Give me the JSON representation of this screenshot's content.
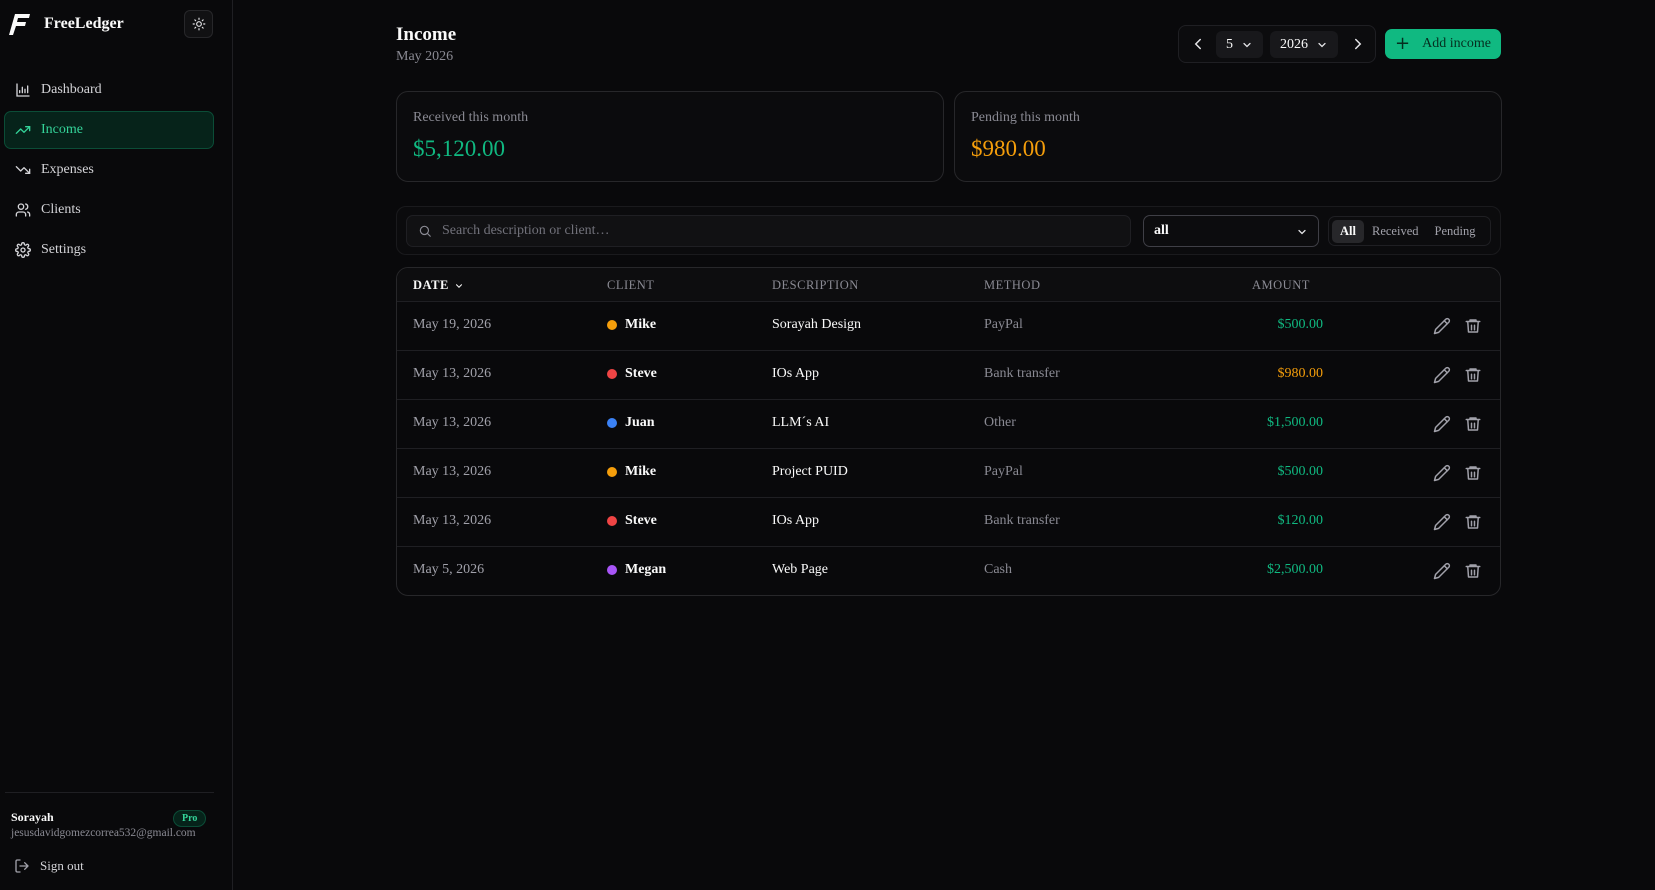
{
  "app": {
    "name": "FreeLedger"
  },
  "sidebar": {
    "items": [
      {
        "label": "Dashboard",
        "icon": "chart-icon",
        "active": false
      },
      {
        "label": "Income",
        "icon": "trending-up-icon",
        "active": true
      },
      {
        "label": "Expenses",
        "icon": "trending-down-icon",
        "active": false
      },
      {
        "label": "Clients",
        "icon": "users-icon",
        "active": false
      },
      {
        "label": "Settings",
        "icon": "gear-icon",
        "active": false
      }
    ],
    "user": {
      "name": "Sorayah",
      "email": "jesusdavidgomezcorrea532@gmail.com",
      "plan": "Pro"
    },
    "signout_label": "Sign out"
  },
  "header": {
    "title": "Income",
    "subtitle": "May 2026",
    "month_value": "5",
    "year_value": "2026",
    "add_label": "Add income"
  },
  "summary": {
    "received": {
      "label": "Received this month",
      "value": "$5,120.00",
      "color": "#10b981"
    },
    "pending": {
      "label": "Pending this month",
      "value": "$980.00",
      "color": "#f59e0b"
    }
  },
  "filters": {
    "search_placeholder": "Search description or client…",
    "select_value": "all",
    "segments": [
      "All",
      "Received",
      "Pending"
    ],
    "active_segment": "All"
  },
  "table": {
    "headers": {
      "date": "Date",
      "client": "Client",
      "description": "Description",
      "method": "Method",
      "amount": "Amount"
    },
    "rows": [
      {
        "date": "May 19, 2026",
        "client": "Mike",
        "client_color": "#f59e0b",
        "description": "Sorayah Design",
        "method": "PayPal",
        "amount": "$500.00",
        "status": "received"
      },
      {
        "date": "May 13, 2026",
        "client": "Steve",
        "client_color": "#ef4444",
        "description": "IOs App",
        "method": "Bank transfer",
        "amount": "$980.00",
        "status": "pending"
      },
      {
        "date": "May 13, 2026",
        "client": "Juan",
        "client_color": "#3b82f6",
        "description": "LLM´s AI",
        "method": "Other",
        "amount": "$1,500.00",
        "status": "received"
      },
      {
        "date": "May 13, 2026",
        "client": "Mike",
        "client_color": "#f59e0b",
        "description": "Project PUID",
        "method": "PayPal",
        "amount": "$500.00",
        "status": "received"
      },
      {
        "date": "May 13, 2026",
        "client": "Steve",
        "client_color": "#ef4444",
        "description": "IOs App",
        "method": "Bank transfer",
        "amount": "$120.00",
        "status": "received"
      },
      {
        "date": "May 5, 2026",
        "client": "Megan",
        "client_color": "#a855f7",
        "description": "Web Page",
        "method": "Cash",
        "amount": "$2,500.00",
        "status": "received"
      }
    ]
  },
  "colors": {
    "accent": "#10b981",
    "received": "#10b981",
    "pending": "#f59e0b"
  }
}
